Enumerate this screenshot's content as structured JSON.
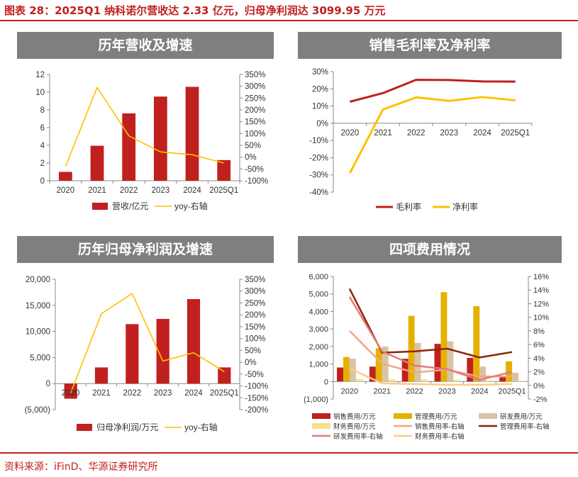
{
  "header": {
    "figure_title": "图表 28：2025Q1 纳科诺尔营收达 2.33 亿元，归母净利润达 3099.95 万元",
    "source": "资料来源：iFinD、华源证券研究所"
  },
  "colors": {
    "accent": "#c0201e",
    "panel_header": "#7f7f7f",
    "bar_red": "#c0201e",
    "line_yellow": "#ffc000",
    "gold": "#e5b100",
    "tan": "#d9c3a5",
    "light_yellow": "#f5e28a",
    "salmon": "#f4a582",
    "dark_red": "#8b2500",
    "pink": "#e07b7b",
    "peach": "#fcc98a"
  },
  "chart_data": [
    {
      "id": "rev",
      "type": "bar",
      "title": "历年营收及增速",
      "categories": [
        "2020",
        "2021",
        "2022",
        "2023",
        "2024",
        "2025Q1"
      ],
      "ylim": [
        0,
        12
      ],
      "yticks": [
        0,
        2,
        4,
        6,
        8,
        10,
        12
      ],
      "y2lim": [
        -100,
        350
      ],
      "y2ticks": [
        -100,
        -50,
        0,
        50,
        100,
        150,
        200,
        250,
        300,
        350
      ],
      "legend_position": "bottom",
      "series": [
        {
          "name": "营收/亿元",
          "type": "bar",
          "axis": "left",
          "color": "#c0201e",
          "values": [
            1.0,
            3.95,
            7.6,
            9.5,
            10.6,
            2.33
          ]
        },
        {
          "name": "yoy-右轴",
          "type": "line",
          "axis": "right",
          "color": "#ffc000",
          "values": [
            -40,
            295,
            90,
            22,
            10,
            -25
          ]
        }
      ]
    },
    {
      "id": "margin",
      "type": "line",
      "title": "销售毛利率及净利率",
      "categories": [
        "2020",
        "2021",
        "2022",
        "2023",
        "2024",
        "2025Q1"
      ],
      "ylim": [
        -40,
        30
      ],
      "yticks": [
        -40,
        -30,
        -20,
        -10,
        0,
        10,
        20,
        30
      ],
      "legend_position": "bottom",
      "series": [
        {
          "name": "毛利率",
          "type": "line",
          "color": "#c0201e",
          "values": [
            12.5,
            17.5,
            25.2,
            25.1,
            24.3,
            24.2
          ]
        },
        {
          "name": "净利率",
          "type": "line",
          "color": "#ffc000",
          "values": [
            -29,
            8,
            15,
            13,
            15.2,
            13.3
          ]
        }
      ]
    },
    {
      "id": "np",
      "type": "bar",
      "title": "历年归母净利润及增速",
      "categories": [
        "2020",
        "2021",
        "2022",
        "2023",
        "2024",
        "2025Q1"
      ],
      "ylim": [
        -5000,
        20000
      ],
      "yticks": [
        -5000,
        0,
        5000,
        10000,
        15000,
        20000
      ],
      "ytick_labels": [
        "(5,000)",
        "0",
        "5,000",
        "10,000",
        "15,000",
        "20,000"
      ],
      "y2lim": [
        -200,
        350
      ],
      "y2ticks": [
        -200,
        -150,
        -100,
        -50,
        0,
        50,
        100,
        150,
        200,
        250,
        300,
        350
      ],
      "legend_position": "bottom",
      "series": [
        {
          "name": "归母净利润/万元",
          "type": "bar",
          "axis": "left",
          "color": "#c0201e",
          "values": [
            -2900,
            3100,
            11400,
            12400,
            16200,
            3100
          ]
        },
        {
          "name": "yoy-右轴",
          "type": "line",
          "axis": "right",
          "color": "#ffc000",
          "values": [
            -130,
            205,
            290,
            5,
            40,
            -40
          ]
        }
      ]
    },
    {
      "id": "exp",
      "type": "bar",
      "title": "四项费用情况",
      "categories": [
        "2020",
        "2021",
        "2022",
        "2023",
        "2024",
        "2025Q1"
      ],
      "ylim": [
        -1000,
        6000
      ],
      "yticks": [
        -1000,
        0,
        1000,
        2000,
        3000,
        4000,
        5000,
        6000
      ],
      "ytick_labels": [
        "(1,000)",
        "0",
        "1,000",
        "2,000",
        "3,000",
        "4,000",
        "5,000",
        "6,000"
      ],
      "y2lim": [
        -2,
        16
      ],
      "y2ticks": [
        -2,
        0,
        2,
        4,
        6,
        8,
        10,
        12,
        14,
        16
      ],
      "legend_position": "bottom",
      "series": [
        {
          "name": "销售费用/万元",
          "type": "bar",
          "axis": "left",
          "color": "#c0201e",
          "values": [
            800,
            850,
            1300,
            2150,
            1350,
            300
          ]
        },
        {
          "name": "管理费用/万元",
          "type": "bar",
          "axis": "left",
          "color": "#e5b100",
          "values": [
            1400,
            1900,
            3750,
            5100,
            4300,
            1150
          ]
        },
        {
          "name": "研发费用/万元",
          "type": "bar",
          "axis": "left",
          "color": "#d9c3a5",
          "values": [
            1300,
            2000,
            2200,
            2300,
            850,
            500
          ]
        },
        {
          "name": "财务费用/万元",
          "type": "bar",
          "axis": "left",
          "color": "#f5e28a",
          "values": [
            150,
            120,
            120,
            100,
            60,
            40
          ]
        },
        {
          "name": "销售费用率-右轴",
          "type": "line",
          "axis": "right",
          "color": "#f4a582",
          "values": [
            8.0,
            3.2,
            1.9,
            2.3,
            1.3,
            1.3
          ]
        },
        {
          "name": "管理费用率-右轴",
          "type": "line",
          "axis": "right",
          "color": "#8b2500",
          "values": [
            14.2,
            4.8,
            5.0,
            5.4,
            4.1,
            4.9
          ]
        },
        {
          "name": "研发费用率-右轴",
          "type": "line",
          "axis": "right",
          "color": "#e07b7b",
          "values": [
            13.0,
            5.0,
            2.9,
            2.4,
            0.8,
            2.0
          ]
        },
        {
          "name": "财务费用率-右轴",
          "type": "line",
          "axis": "right",
          "color": "#fcc98a",
          "values": [
            2.5,
            0.3,
            0.2,
            0.1,
            0.1,
            0.2
          ]
        }
      ]
    }
  ]
}
